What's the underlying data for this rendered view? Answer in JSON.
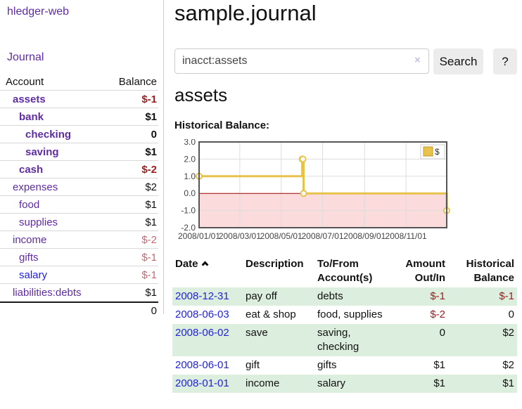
{
  "colors": {
    "accent_purple": "#5e2ca5",
    "link_blue": "#2222dd",
    "negative_strong": "#9b1c1c",
    "negative_soft": "#c56872",
    "row_green": "#dceedd",
    "chart_line_gold": "#e8c34c",
    "chart_negative_fill": "#fbdbdb",
    "chart_zero_line": "#990000"
  },
  "sidebar": {
    "app_title": "hledger-web",
    "journal_link": "Journal",
    "accounts": {
      "header": {
        "account": "Account",
        "balance": "Balance"
      },
      "rows": [
        {
          "name": "assets",
          "balance": "$-1"
        },
        {
          "name": "bank",
          "balance": "$1"
        },
        {
          "name": "checking",
          "balance": "0"
        },
        {
          "name": "saving",
          "balance": "$1"
        },
        {
          "name": "cash",
          "balance": "$-2"
        },
        {
          "name": "expenses",
          "balance": "$2"
        },
        {
          "name": "food",
          "balance": "$1"
        },
        {
          "name": "supplies",
          "balance": "$1"
        },
        {
          "name": "income",
          "balance": "$-2"
        },
        {
          "name": "gifts",
          "balance": "$-1"
        },
        {
          "name": "salary",
          "balance": "$-1"
        },
        {
          "name": "liabilities:debts",
          "balance": "$1"
        }
      ],
      "total": "0"
    }
  },
  "main": {
    "title": "sample.journal",
    "search": {
      "value": "inacct:assets",
      "clear_icon": "×",
      "search_button": "Search",
      "help_button": "?"
    },
    "account_heading": "assets",
    "chart_title": "Historical Balance:"
  },
  "chart_data": {
    "type": "line",
    "step": true,
    "title": "Historical Balance:",
    "series": [
      {
        "name": "$",
        "color": "#e8c34c",
        "points": [
          [
            "2008-01-01",
            1
          ],
          [
            "2008-06-01",
            2
          ],
          [
            "2008-06-02",
            2
          ],
          [
            "2008-06-03",
            0
          ],
          [
            "2008-12-31",
            -1
          ]
        ]
      }
    ],
    "x_range": [
      "2008-01-01",
      "2008-12-31"
    ],
    "x_ticks": [
      "2008/01/01",
      "2008/03/01",
      "2008/05/01",
      "2008/07/01",
      "2008/09/01",
      "2008/11/01"
    ],
    "y_ticks": [
      3,
      2,
      1,
      0,
      -1,
      -2
    ],
    "ylim": [
      -2,
      3
    ],
    "grid": true,
    "legend": {
      "label": "$",
      "position": "top-right"
    },
    "negative_fill": "#fbdbdb",
    "zero_line_color": "#990000"
  },
  "register": {
    "headers": {
      "date": "Date",
      "description": "Description",
      "accounts": "To/From Account(s)",
      "amount": "Amount Out/In",
      "balance": "Historical Balance"
    },
    "rows": [
      {
        "date": "2008-12-31",
        "description": "pay off",
        "accounts": "debts",
        "amount": "$-1",
        "balance": "$-1"
      },
      {
        "date": "2008-06-03",
        "description": "eat & shop",
        "accounts": "food, supplies",
        "amount": "$-2",
        "balance": "0"
      },
      {
        "date": "2008-06-02",
        "description": "save",
        "accounts": "saving, checking",
        "amount": "0",
        "balance": "$2"
      },
      {
        "date": "2008-06-01",
        "description": "gift",
        "accounts": "gifts",
        "amount": "$1",
        "balance": "$2"
      },
      {
        "date": "2008-01-01",
        "description": "income",
        "accounts": "salary",
        "amount": "$1",
        "balance": "$1"
      }
    ]
  }
}
